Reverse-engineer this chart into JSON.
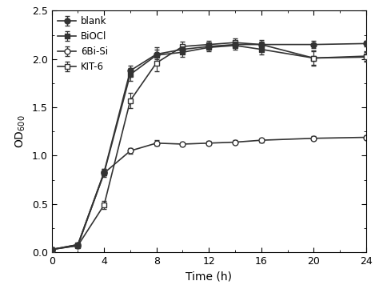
{
  "time": [
    0,
    2,
    4,
    6,
    8,
    10,
    12,
    14,
    16,
    20,
    24
  ],
  "blank": [
    0.03,
    0.08,
    0.83,
    1.88,
    2.05,
    2.1,
    2.13,
    2.15,
    2.15,
    2.15,
    2.16
  ],
  "blank_err": [
    0.01,
    0.01,
    0.03,
    0.05,
    0.05,
    0.03,
    0.03,
    0.03,
    0.03,
    0.04,
    0.03
  ],
  "biocl": [
    0.03,
    0.08,
    0.82,
    1.84,
    2.04,
    2.07,
    2.12,
    2.14,
    2.1,
    2.01,
    2.03
  ],
  "biocl_err": [
    0.01,
    0.01,
    0.04,
    0.07,
    0.08,
    0.05,
    0.04,
    0.04,
    0.05,
    0.07,
    0.05
  ],
  "bisi6": [
    0.03,
    0.07,
    0.82,
    1.05,
    1.13,
    1.12,
    1.13,
    1.14,
    1.16,
    1.18,
    1.19
  ],
  "bisi6_err": [
    0.01,
    0.01,
    0.02,
    0.03,
    0.03,
    0.02,
    0.02,
    0.02,
    0.02,
    0.02,
    0.02
  ],
  "kit6": [
    0.03,
    0.07,
    0.49,
    1.57,
    1.96,
    2.13,
    2.15,
    2.17,
    2.15,
    2.01,
    2.02
  ],
  "kit6_err": [
    0.01,
    0.01,
    0.04,
    0.08,
    0.09,
    0.05,
    0.04,
    0.04,
    0.05,
    0.08,
    0.05
  ],
  "ylabel": "OD$_{600}$",
  "xlabel": "Time (h)",
  "ylim": [
    0.0,
    2.5
  ],
  "xlim": [
    0,
    24
  ],
  "yticks": [
    0.0,
    0.5,
    1.0,
    1.5,
    2.0,
    2.5
  ],
  "xticks": [
    0,
    4,
    8,
    12,
    16,
    20,
    24
  ],
  "legend_labels": [
    "blank",
    "BiOCl",
    "6Bi-Si",
    "KIT-6"
  ],
  "line_color": "#333333",
  "face_color": "#ffffff",
  "marker_size": 5,
  "linewidth": 1.2,
  "capsize": 2.5,
  "elinewidth": 0.8
}
